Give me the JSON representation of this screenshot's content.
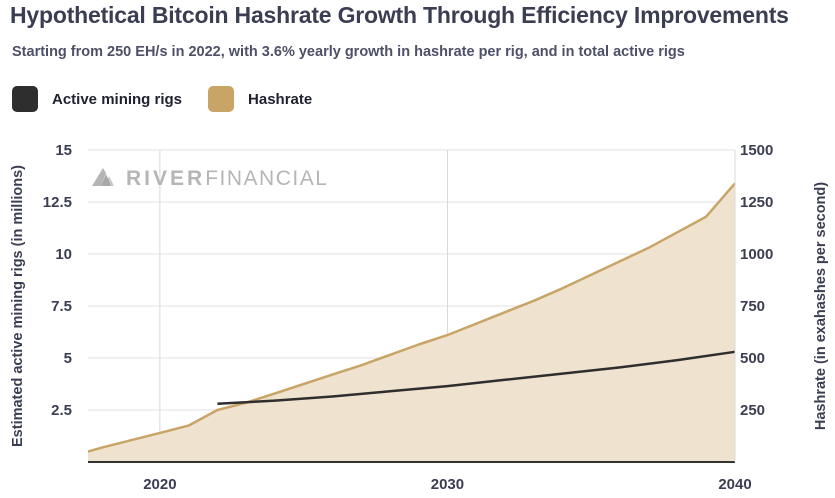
{
  "title": "Hypothetical Bitcoin Hashrate Growth Through Efficiency Improvements",
  "subtitle": "Starting from 250 EH/s in 2022, with 3.6% yearly growth in hashrate per rig, and in total active rigs",
  "legend": {
    "rigs_label": "Active mining rigs",
    "hashrate_label": "Hashrate",
    "rigs_color": "#2e2e2e",
    "hashrate_color": "#c8a467"
  },
  "watermark": {
    "brand_bold": "RIVER",
    "brand_light": "FINANCIAL",
    "logo_icon": "mountain-logo-icon"
  },
  "chart_data": {
    "type": "area",
    "x_ticks": [
      "2020",
      "2030",
      "2040"
    ],
    "xlim": [
      2017.5,
      2040
    ],
    "y_left": {
      "label": "Estimated active mining rigs (in millions)",
      "ticks": [
        "2.5",
        "5",
        "7.5",
        "10",
        "12.5",
        "15"
      ],
      "ylim": [
        0,
        15
      ]
    },
    "y_right": {
      "label": "Hashrate (in exahashes per second)",
      "ticks": [
        "250",
        "500",
        "750",
        "1000",
        "1250",
        "1500"
      ],
      "ylim": [
        0,
        1500
      ]
    },
    "grid": true,
    "legend_position": "top-left",
    "series": [
      {
        "name": "Active mining rigs",
        "axis": "left",
        "type": "line",
        "color": "#2e2e2e",
        "points": [
          [
            2022,
            2.8
          ],
          [
            2024,
            2.95
          ],
          [
            2026,
            3.15
          ],
          [
            2028,
            3.4
          ],
          [
            2030,
            3.65
          ],
          [
            2032,
            3.95
          ],
          [
            2034,
            4.25
          ],
          [
            2036,
            4.55
          ],
          [
            2038,
            4.9
          ],
          [
            2040,
            5.3
          ]
        ]
      },
      {
        "name": "Hashrate",
        "axis": "right",
        "type": "area",
        "color": "#c8a467",
        "fill": "#efe3cf",
        "points": [
          [
            2017.5,
            50
          ],
          [
            2018,
            70
          ],
          [
            2019,
            105
          ],
          [
            2020,
            140
          ],
          [
            2021,
            175
          ],
          [
            2022,
            250
          ],
          [
            2023,
            285
          ],
          [
            2024,
            330
          ],
          [
            2025,
            375
          ],
          [
            2026,
            420
          ],
          [
            2027,
            465
          ],
          [
            2028,
            515
          ],
          [
            2029,
            565
          ],
          [
            2030,
            610
          ],
          [
            2031,
            665
          ],
          [
            2032,
            720
          ],
          [
            2033,
            775
          ],
          [
            2034,
            835
          ],
          [
            2035,
            900
          ],
          [
            2036,
            965
          ],
          [
            2037,
            1030
          ],
          [
            2038,
            1105
          ],
          [
            2039,
            1180
          ],
          [
            2040,
            1340
          ]
        ]
      }
    ]
  }
}
